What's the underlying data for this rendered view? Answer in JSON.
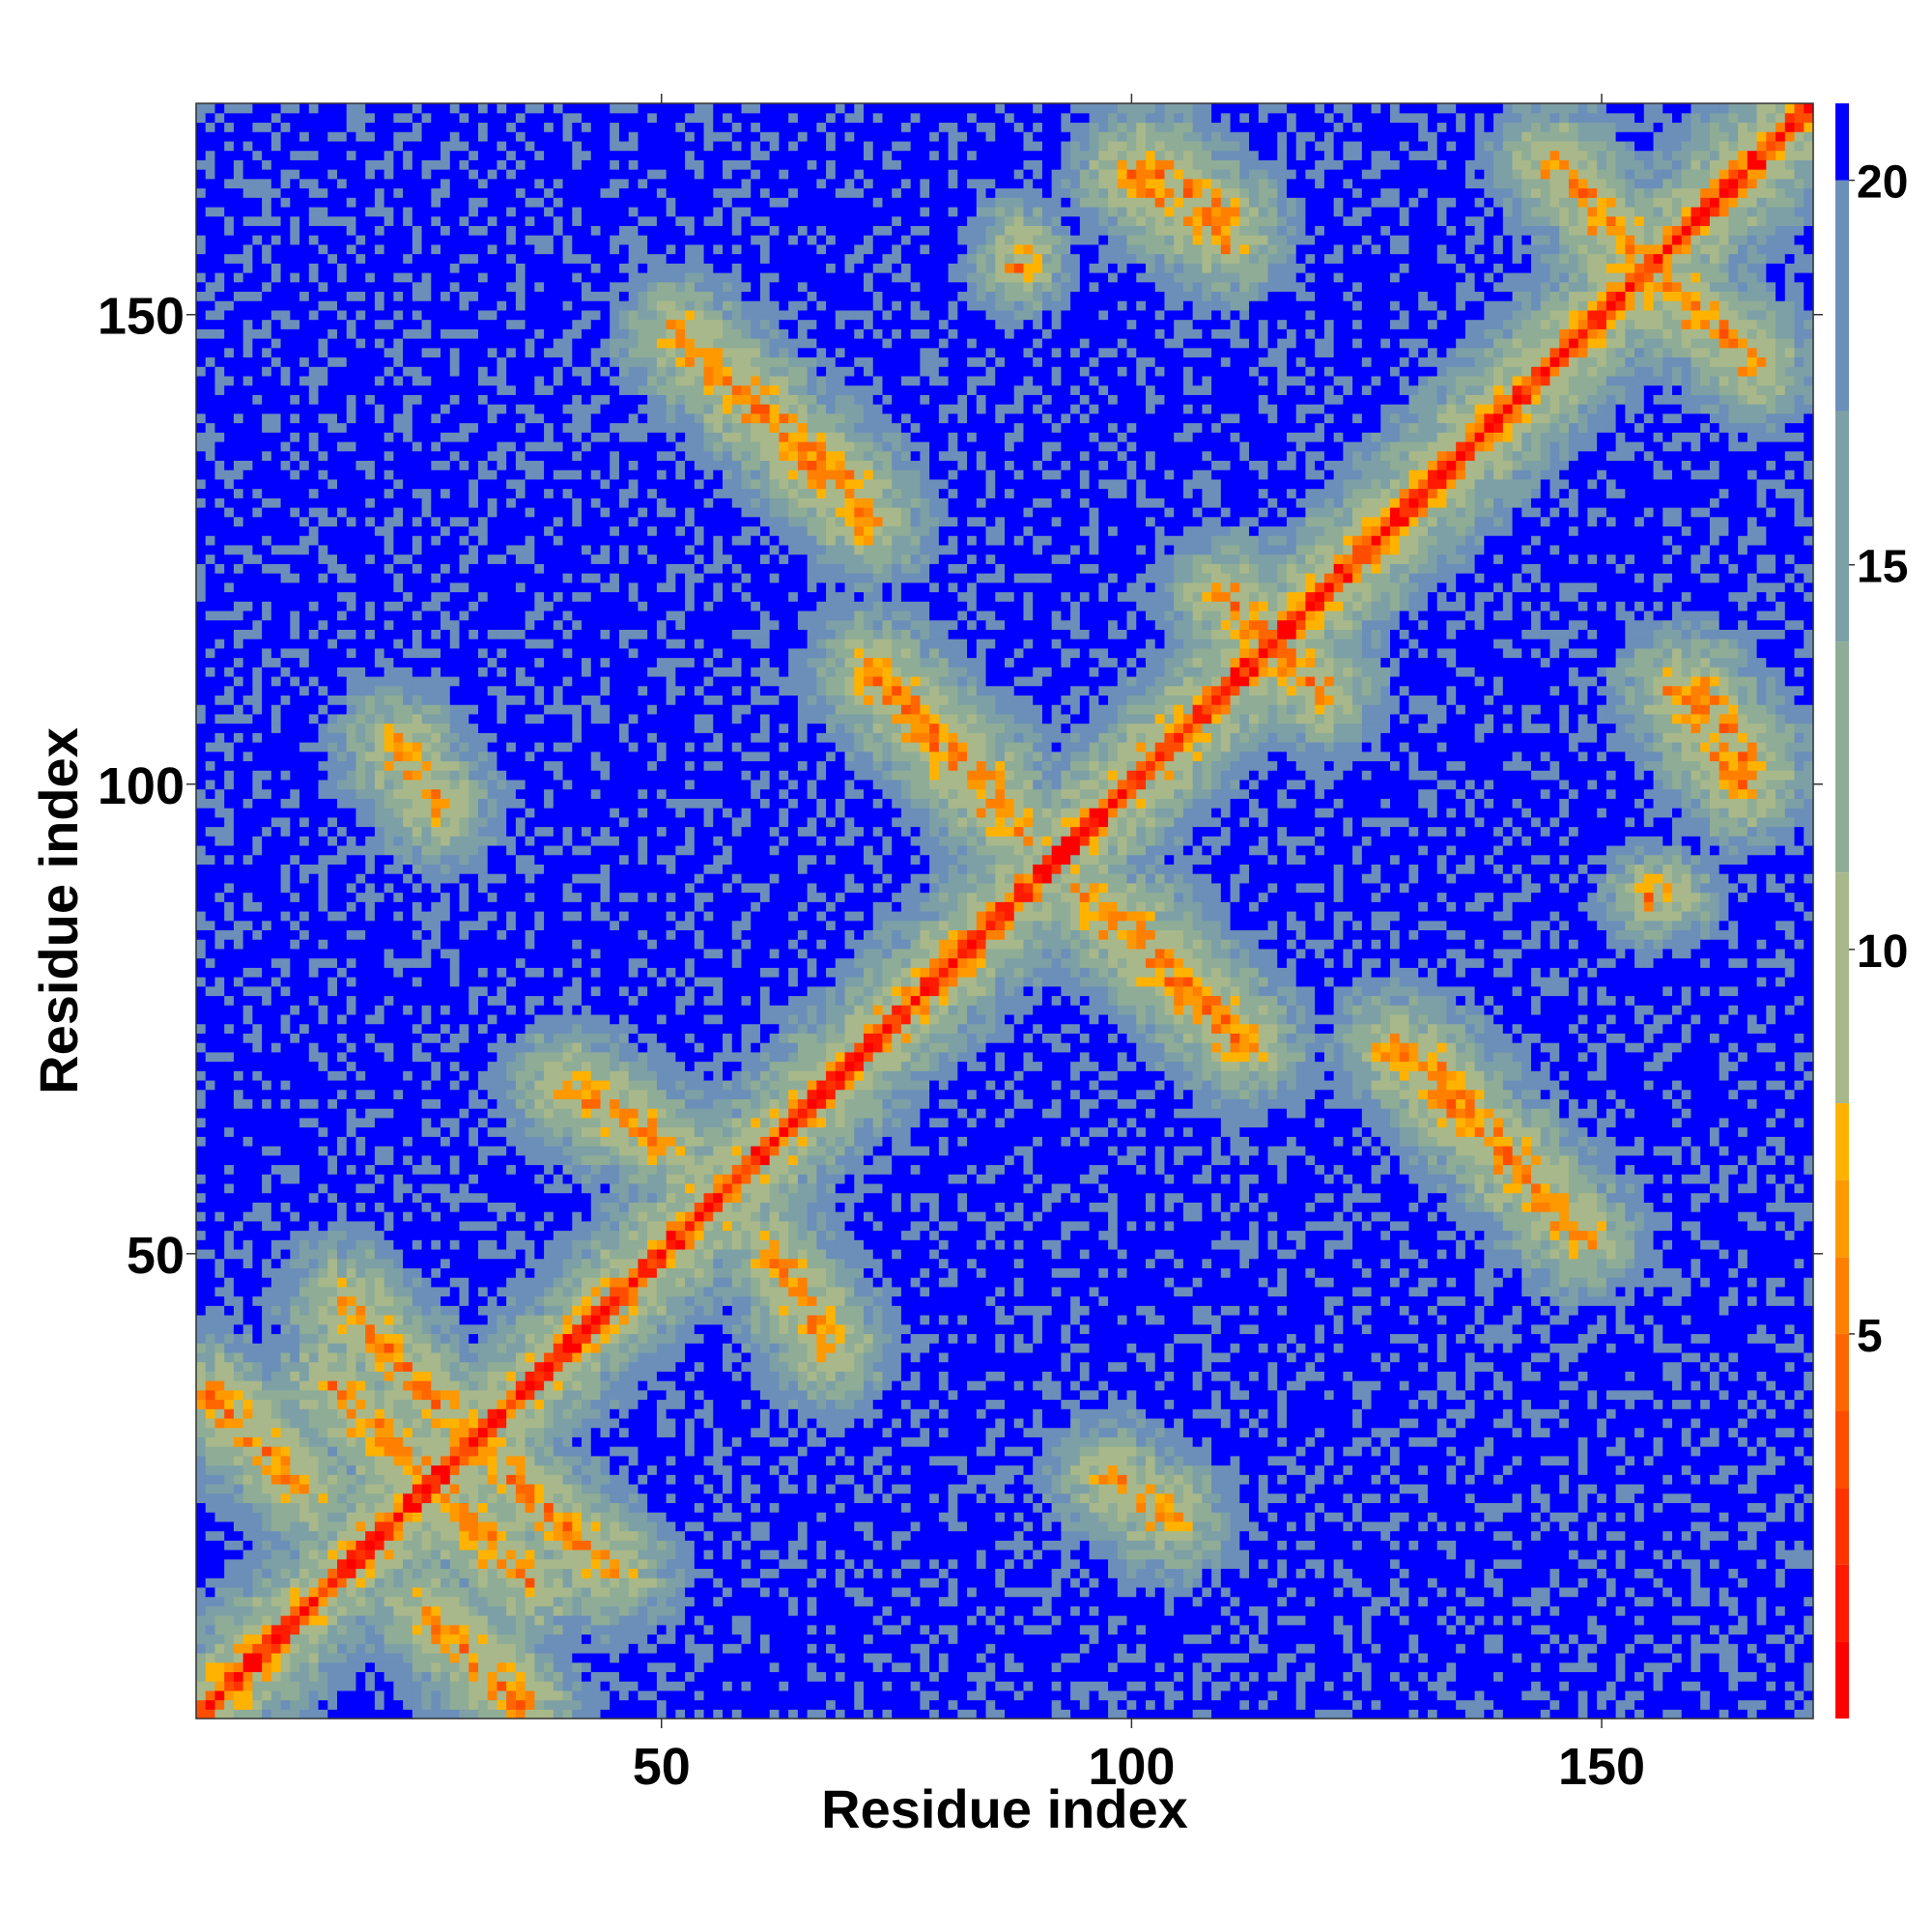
{
  "chart_data": {
    "type": "heatmap",
    "title": "",
    "xlabel": "Residue index",
    "ylabel": "Residue index",
    "n_residues": 172,
    "xlim": [
      1,
      172
    ],
    "ylim": [
      1,
      172
    ],
    "x_ticks": [
      50,
      100,
      150
    ],
    "y_ticks": [
      50,
      100,
      150
    ],
    "x_tick_labels": [
      "50",
      "100",
      "150"
    ],
    "y_tick_labels": [
      "50",
      "100",
      "150"
    ],
    "colorbar": {
      "ticks": [
        5,
        10,
        15,
        20
      ],
      "tick_labels": [
        "5",
        "10",
        "15",
        "20"
      ],
      "range": [
        0,
        21
      ],
      "bands": [
        {
          "min": 0,
          "max": 1,
          "color": "#ff0000"
        },
        {
          "min": 1,
          "max": 2,
          "color": "#ff1a00"
        },
        {
          "min": 2,
          "max": 3,
          "color": "#ff3300"
        },
        {
          "min": 3,
          "max": 4,
          "color": "#ff4d00"
        },
        {
          "min": 4,
          "max": 5,
          "color": "#ff6600"
        },
        {
          "min": 5,
          "max": 6,
          "color": "#ff8000"
        },
        {
          "min": 6,
          "max": 7,
          "color": "#ff9900"
        },
        {
          "min": 7,
          "max": 8,
          "color": "#ffb300"
        },
        {
          "min": 8,
          "max": 11,
          "color": "#a8b88a"
        },
        {
          "min": 11,
          "max": 14,
          "color": "#8fac96"
        },
        {
          "min": 14,
          "max": 17,
          "color": "#7da0a6"
        },
        {
          "min": 17,
          "max": 20,
          "color": "#6b8fb8"
        },
        {
          "min": 20,
          "max": 21,
          "color": "#0000ff"
        }
      ]
    },
    "contact_features": {
      "diagonal": {
        "distance": 0
      },
      "off_diagonal_strands": [
        {
          "i_from": 15,
          "j_from": 36,
          "i_to": 36,
          "j_to": 15
        },
        {
          "i_from": 25,
          "j_from": 12,
          "i_to": 35,
          "j_to": 2
        },
        {
          "i_from": 45,
          "j_from": 16,
          "i_to": 30,
          "j_to": 30
        },
        {
          "i_from": 40,
          "j_from": 68,
          "i_to": 50,
          "j_to": 62
        },
        {
          "i_from": 73,
          "j_from": 112,
          "i_to": 85,
          "j_to": 100
        },
        {
          "i_from": 95,
          "j_from": 88,
          "i_to": 112,
          "j_to": 72
        },
        {
          "i_from": 110,
          "j_from": 120,
          "i_to": 120,
          "j_to": 110
        },
        {
          "i_from": 102,
          "j_from": 166,
          "i_to": 110,
          "j_to": 160
        },
        {
          "i_from": 145,
          "j_from": 166,
          "i_to": 160,
          "j_to": 150
        },
        {
          "i_from": 158,
          "j_from": 110,
          "i_to": 165,
          "j_to": 100
        },
        {
          "i_from": 52,
          "j_from": 148,
          "i_to": 72,
          "j_to": 128
        },
        {
          "i_from": 132,
          "j_from": 70,
          "i_to": 144,
          "j_to": 56
        },
        {
          "i_from": 98,
          "j_from": 26,
          "i_to": 104,
          "j_to": 22
        }
      ],
      "hot_spots": [
        {
          "i": 88,
          "j": 157
        },
        {
          "i": 155,
          "j": 88
        }
      ]
    }
  }
}
